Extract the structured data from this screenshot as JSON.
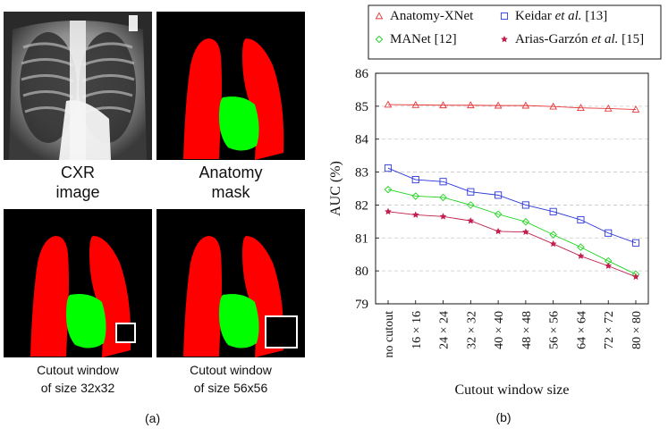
{
  "panel_a": {
    "label": "(a)",
    "captions": {
      "cxr": [
        "CXR",
        "image"
      ],
      "anatomy": [
        "Anatomy",
        "mask"
      ],
      "cutout32": [
        "Cutout window",
        "of size 32x32"
      ],
      "cutout56": [
        "Cutout window",
        "of size 56x56"
      ]
    },
    "colors": {
      "lung": "#ff0000",
      "heart": "#00ff00",
      "background": "#000000",
      "window": "#ffffff"
    }
  },
  "panel_b": {
    "label": "(b)"
  },
  "chart_data": {
    "type": "line",
    "xlabel": "Cutout window size",
    "ylabel": "AUC (%)",
    "categories": [
      "no cutout",
      "16 × 16",
      "24 × 24",
      "32 × 32",
      "40 × 40",
      "48 × 48",
      "56 × 56",
      "64 × 64",
      "72 × 72",
      "80 × 80"
    ],
    "ylim": [
      79,
      86
    ],
    "yticks": [
      "79",
      "80",
      "81",
      "82",
      "83",
      "84",
      "85",
      "86"
    ],
    "grid": "horizontal-dashed",
    "legend_position": "top",
    "series": [
      {
        "name": "Anatomy-XNet",
        "marker": "triangle",
        "color": "#e8383b",
        "values": [
          85.05,
          85.04,
          85.03,
          85.03,
          85.02,
          85.02,
          84.99,
          84.95,
          84.93,
          84.9
        ]
      },
      {
        "name": "Keidar et al. [13]",
        "name_parts": [
          "Keidar ",
          "et al.",
          " [13]"
        ],
        "marker": "square",
        "color": "#2a36d8",
        "values": [
          83.12,
          82.77,
          82.71,
          82.4,
          82.3,
          82.0,
          81.8,
          81.55,
          81.15,
          80.85
        ]
      },
      {
        "name": "MANet [12]",
        "marker": "diamond",
        "color": "#1fd41f",
        "values": [
          82.47,
          82.27,
          82.23,
          82.0,
          81.72,
          81.49,
          81.1,
          80.72,
          80.3,
          79.9
        ]
      },
      {
        "name": "Arias-Garzón et al. [15]",
        "name_parts": [
          "Arias-Garzón ",
          "et al.",
          " [15]"
        ],
        "marker": "star",
        "color": "#c21d4c",
        "values": [
          81.8,
          81.7,
          81.65,
          81.52,
          81.2,
          81.18,
          80.82,
          80.45,
          80.15,
          79.82
        ]
      }
    ]
  }
}
